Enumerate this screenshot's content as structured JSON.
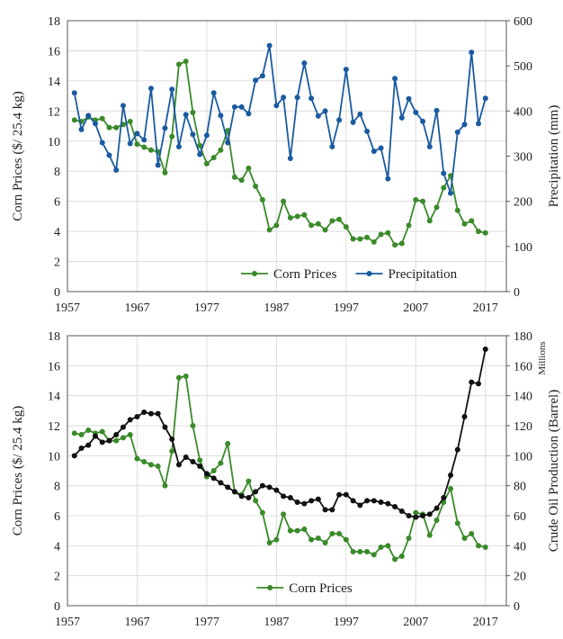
{
  "chart_data": [
    {
      "type": "line",
      "y_label": "Corn Prices ($/ 25.4 kg)",
      "y2_label": "Precipitation  (mm)",
      "x": [
        1958,
        1959,
        1960,
        1961,
        1962,
        1963,
        1964,
        1965,
        1966,
        1967,
        1968,
        1969,
        1970,
        1971,
        1972,
        1973,
        1974,
        1975,
        1976,
        1977,
        1978,
        1979,
        1980,
        1981,
        1982,
        1983,
        1984,
        1985,
        1986,
        1987,
        1988,
        1989,
        1990,
        1991,
        1992,
        1993,
        1994,
        1995,
        1996,
        1997,
        1998,
        1999,
        2000,
        2001,
        2002,
        2003,
        2004,
        2005,
        2006,
        2007,
        2008,
        2009,
        2010,
        2011,
        2012,
        2013,
        2014,
        2015,
        2016,
        2017
      ],
      "xlim": [
        1957,
        2020
      ],
      "xticks": [
        1957,
        1967,
        1977,
        1987,
        1997,
        2007,
        2017
      ],
      "ylim": [
        0,
        18
      ],
      "yticks": [
        0,
        2,
        4,
        6,
        8,
        10,
        12,
        14,
        16,
        18
      ],
      "y2lim": [
        0,
        600
      ],
      "y2ticks": [
        0,
        100,
        200,
        300,
        400,
        500,
        600
      ],
      "grid": true,
      "legend": "lower right",
      "series": [
        {
          "name": "Corn Prices",
          "color": "#3a8a2a",
          "values": [
            11.4,
            11.3,
            11.6,
            11.4,
            11.5,
            10.9,
            10.9,
            11.1,
            11.3,
            9.8,
            9.6,
            9.4,
            9.3,
            7.9,
            10.3,
            15.1,
            15.3,
            11.9,
            9.7,
            8.5,
            8.9,
            9.4,
            10.7,
            7.6,
            7.4,
            8.2,
            7.0,
            6.1,
            4.1,
            4.4,
            6.0,
            4.9,
            5.0,
            5.1,
            4.4,
            4.5,
            4.1,
            4.7,
            4.8,
            4.3,
            3.5,
            3.5,
            3.6,
            3.3,
            3.8,
            3.9,
            3.1,
            3.2,
            4.4,
            6.1,
            6.0,
            4.7,
            5.6,
            6.9,
            7.7,
            5.4,
            4.5,
            4.7,
            4.0,
            3.9
          ]
        },
        {
          "name": "Precipitation",
          "color": "#1a5aa0",
          "axis": "y2",
          "values": [
            440,
            359,
            390,
            372,
            330,
            302,
            269,
            412,
            328,
            350,
            336,
            450,
            280,
            362,
            448,
            321,
            392,
            348,
            304,
            346,
            440,
            390,
            330,
            409,
            409,
            394,
            468,
            478,
            545,
            412,
            430,
            295,
            430,
            506,
            428,
            389,
            400,
            321,
            380,
            492,
            375,
            393,
            355,
            311,
            318,
            250,
            472,
            385,
            427,
            397,
            377,
            321,
            401,
            262,
            218,
            353,
            370,
            530,
            372,
            428
          ]
        }
      ]
    },
    {
      "type": "line",
      "y_label": "Corn Prices ($/ 25.4 kg)",
      "y2_label": "Crude Oil Production  (Barrel)",
      "y2_unit": "Millions",
      "x": [
        1958,
        1959,
        1960,
        1961,
        1962,
        1963,
        1964,
        1965,
        1966,
        1967,
        1968,
        1969,
        1970,
        1971,
        1972,
        1973,
        1974,
        1975,
        1976,
        1977,
        1978,
        1979,
        1980,
        1981,
        1982,
        1983,
        1984,
        1985,
        1986,
        1987,
        1988,
        1989,
        1990,
        1991,
        1992,
        1993,
        1994,
        1995,
        1996,
        1997,
        1998,
        1999,
        2000,
        2001,
        2002,
        2003,
        2004,
        2005,
        2006,
        2007,
        2008,
        2009,
        2010,
        2011,
        2012,
        2013,
        2014,
        2015,
        2016,
        2017
      ],
      "xlim": [
        1957,
        2020
      ],
      "xticks": [
        1957,
        1967,
        1977,
        1987,
        1997,
        2007,
        2017
      ],
      "ylim": [
        0,
        18
      ],
      "yticks": [
        0,
        2,
        4,
        6,
        8,
        10,
        12,
        14,
        16,
        18
      ],
      "y2lim": [
        0,
        180
      ],
      "y2ticks": [
        0,
        20,
        40,
        60,
        80,
        100,
        120,
        140,
        160,
        180
      ],
      "grid": true,
      "legend": "lower center",
      "series": [
        {
          "name": "Corn Prices",
          "color": "#3a8a2a",
          "values": [
            11.5,
            11.4,
            11.7,
            11.5,
            11.6,
            11.0,
            11.0,
            11.2,
            11.4,
            9.8,
            9.6,
            9.4,
            9.3,
            8.0,
            10.3,
            15.2,
            15.3,
            12.0,
            9.7,
            8.6,
            9.0,
            9.5,
            10.8,
            7.6,
            7.4,
            8.3,
            7.0,
            6.2,
            4.2,
            4.4,
            6.1,
            5.0,
            5.0,
            5.1,
            4.4,
            4.5,
            4.2,
            4.8,
            4.8,
            4.4,
            3.6,
            3.6,
            3.6,
            3.4,
            3.9,
            4.0,
            3.1,
            3.3,
            4.5,
            6.2,
            6.1,
            4.7,
            5.7,
            6.9,
            7.8,
            5.5,
            4.5,
            4.8,
            4.0,
            3.9
          ]
        },
        {
          "color": "#111111",
          "axis": "y2",
          "values": [
            100,
            105,
            107,
            113,
            109,
            110,
            114,
            119,
            124,
            126,
            129,
            128,
            128,
            119,
            111,
            94,
            99,
            96,
            93,
            88,
            85,
            82,
            79,
            76,
            73,
            72,
            76,
            80,
            79,
            77,
            73,
            72,
            69,
            68,
            70,
            71,
            64,
            64,
            74,
            74,
            70,
            67,
            70,
            70,
            69,
            68,
            66,
            63,
            60,
            59,
            60,
            61,
            65,
            72,
            87,
            104,
            126,
            149,
            148,
            171
          ]
        }
      ]
    }
  ]
}
